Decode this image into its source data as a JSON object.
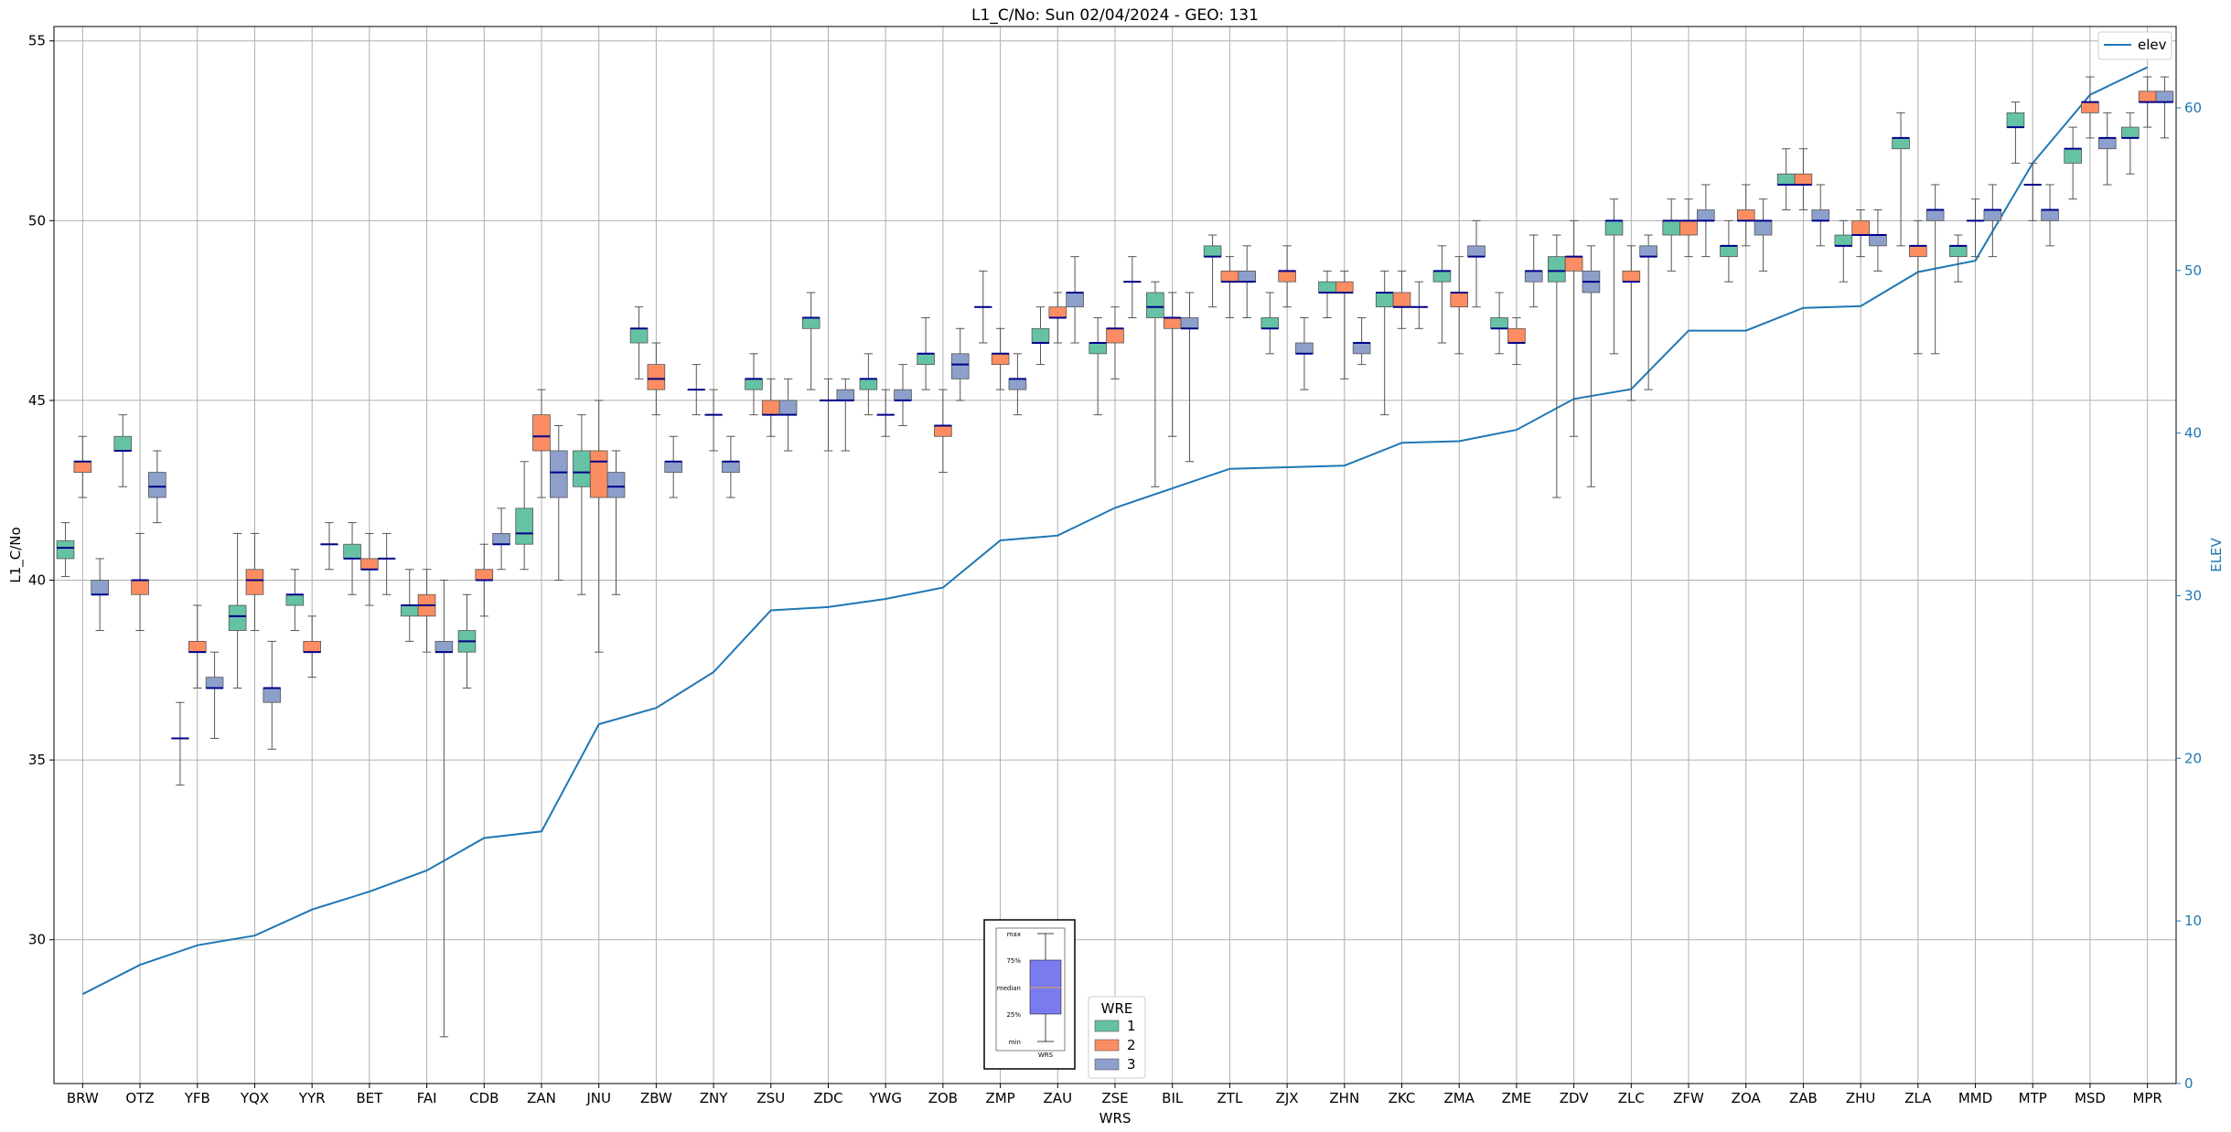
{
  "chart_data": {
    "type": "box",
    "title": "L1_C/No: Sun 02/04/2024 - GEO: 131",
    "xlabel": "WRS",
    "ylabel": "L1_C/No",
    "y2label": "ELEV",
    "ylim": [
      26,
      55.4
    ],
    "y2lim": [
      0,
      65
    ],
    "yticks": [
      30,
      35,
      40,
      45,
      50,
      55
    ],
    "y2ticks": [
      0,
      10,
      20,
      30,
      40,
      50,
      60
    ],
    "grid": true,
    "categories": [
      "BRW",
      "OTZ",
      "YFB",
      "YQX",
      "YYR",
      "BET",
      "FAI",
      "CDB",
      "ZAN",
      "JNU",
      "ZBW",
      "ZNY",
      "ZSU",
      "ZDC",
      "YWG",
      "ZOB",
      "ZMP",
      "ZAU",
      "ZSE",
      "BIL",
      "ZTL",
      "ZJX",
      "ZHN",
      "ZKC",
      "ZMA",
      "ZME",
      "ZDV",
      "ZLC",
      "ZFW",
      "ZOA",
      "ZAB",
      "ZHU",
      "ZLA",
      "MMD",
      "MTP",
      "MSD",
      "MPR"
    ],
    "series_colors": {
      "1": "#66c2a5",
      "2": "#fc8d62",
      "3": "#8da0cb"
    },
    "median_color": "#00008b",
    "elev_color": "#1f77b4",
    "elev_legend_label": "elev",
    "wre_legend": {
      "title": "WRE",
      "items": [
        "1",
        "2",
        "3"
      ]
    },
    "box_key": {
      "labels": [
        "max",
        "75%",
        "median",
        "25%",
        "min"
      ],
      "xlabel": "WRS",
      "fill": "#7b7bf0"
    },
    "elev": [
      5.5,
      7.3,
      8.5,
      9.1,
      10.7,
      11.8,
      13.1,
      15.1,
      15.5,
      22.1,
      23.1,
      25.3,
      29.1,
      29.3,
      29.8,
      30.5,
      33.4,
      33.7,
      35.4,
      36.6,
      37.8,
      37.9,
      38.0,
      39.4,
      39.5,
      40.2,
      42.1,
      42.7,
      46.3,
      46.3,
      47.7,
      47.8,
      49.9,
      50.6,
      56.6,
      60.8,
      62.5
    ],
    "boxes": [
      {
        "wrs": "BRW",
        "wre": 1,
        "min": 40.1,
        "q1": 40.6,
        "med": 40.9,
        "q3": 41.1,
        "max": 41.6
      },
      {
        "wrs": "BRW",
        "wre": 2,
        "min": 42.3,
        "q1": 43.0,
        "med": 43.3,
        "q3": 43.3,
        "max": 44.0
      },
      {
        "wrs": "BRW",
        "wre": 3,
        "min": 38.6,
        "q1": 39.6,
        "med": 39.6,
        "q3": 40.0,
        "max": 40.6
      },
      {
        "wrs": "OTZ",
        "wre": 1,
        "min": 42.6,
        "q1": 43.6,
        "med": 43.6,
        "q3": 44.0,
        "max": 44.6
      },
      {
        "wrs": "OTZ",
        "wre": 2,
        "min": 38.6,
        "q1": 39.6,
        "med": 40.0,
        "q3": 40.0,
        "max": 41.3
      },
      {
        "wrs": "OTZ",
        "wre": 3,
        "min": 41.6,
        "q1": 42.3,
        "med": 42.6,
        "q3": 43.0,
        "max": 43.6
      },
      {
        "wrs": "YFB",
        "wre": 1,
        "min": 34.3,
        "q1": 35.6,
        "med": 35.6,
        "q3": 35.6,
        "max": 36.6
      },
      {
        "wrs": "YFB",
        "wre": 2,
        "min": 37.0,
        "q1": 38.0,
        "med": 38.0,
        "q3": 38.3,
        "max": 39.3
      },
      {
        "wrs": "YFB",
        "wre": 3,
        "min": 35.6,
        "q1": 37.0,
        "med": 37.0,
        "q3": 37.3,
        "max": 38.0
      },
      {
        "wrs": "YQX",
        "wre": 1,
        "min": 37.0,
        "q1": 38.6,
        "med": 39.0,
        "q3": 39.3,
        "max": 41.3
      },
      {
        "wrs": "YQX",
        "wre": 2,
        "min": 38.6,
        "q1": 39.6,
        "med": 40.0,
        "q3": 40.3,
        "max": 41.3
      },
      {
        "wrs": "YQX",
        "wre": 3,
        "min": 35.3,
        "q1": 36.6,
        "med": 37.0,
        "q3": 37.0,
        "max": 38.3
      },
      {
        "wrs": "YYR",
        "wre": 1,
        "min": 38.6,
        "q1": 39.3,
        "med": 39.6,
        "q3": 39.6,
        "max": 40.3
      },
      {
        "wrs": "YYR",
        "wre": 2,
        "min": 37.3,
        "q1": 38.0,
        "med": 38.0,
        "q3": 38.3,
        "max": 39.0
      },
      {
        "wrs": "YYR",
        "wre": 3,
        "min": 40.3,
        "q1": 41.0,
        "med": 41.0,
        "q3": 41.0,
        "max": 41.6
      },
      {
        "wrs": "BET",
        "wre": 1,
        "min": 39.6,
        "q1": 40.6,
        "med": 40.6,
        "q3": 41.0,
        "max": 41.6
      },
      {
        "wrs": "BET",
        "wre": 2,
        "min": 39.3,
        "q1": 40.3,
        "med": 40.3,
        "q3": 40.6,
        "max": 41.3
      },
      {
        "wrs": "BET",
        "wre": 3,
        "min": 39.6,
        "q1": 40.6,
        "med": 40.6,
        "q3": 40.6,
        "max": 41.3
      },
      {
        "wrs": "FAI",
        "wre": 1,
        "min": 38.3,
        "q1": 39.0,
        "med": 39.3,
        "q3": 39.3,
        "max": 40.3
      },
      {
        "wrs": "FAI",
        "wre": 2,
        "min": 38.0,
        "q1": 39.0,
        "med": 39.3,
        "q3": 39.6,
        "max": 40.3
      },
      {
        "wrs": "FAI",
        "wre": 3,
        "min": 27.3,
        "q1": 38.0,
        "med": 38.0,
        "q3": 38.3,
        "max": 40.0
      },
      {
        "wrs": "CDB",
        "wre": 1,
        "min": 37.0,
        "q1": 38.0,
        "med": 38.3,
        "q3": 38.6,
        "max": 39.6
      },
      {
        "wrs": "CDB",
        "wre": 2,
        "min": 39.0,
        "q1": 40.0,
        "med": 40.0,
        "q3": 40.3,
        "max": 41.0
      },
      {
        "wrs": "CDB",
        "wre": 3,
        "min": 40.3,
        "q1": 41.0,
        "med": 41.0,
        "q3": 41.3,
        "max": 42.0
      },
      {
        "wrs": "ZAN",
        "wre": 1,
        "min": 40.3,
        "q1": 41.0,
        "med": 41.3,
        "q3": 42.0,
        "max": 43.3
      },
      {
        "wrs": "ZAN",
        "wre": 2,
        "min": 42.3,
        "q1": 43.6,
        "med": 44.0,
        "q3": 44.6,
        "max": 45.3
      },
      {
        "wrs": "ZAN",
        "wre": 3,
        "min": 40.0,
        "q1": 42.3,
        "med": 43.0,
        "q3": 43.6,
        "max": 44.3
      },
      {
        "wrs": "JNU",
        "wre": 1,
        "min": 39.6,
        "q1": 42.6,
        "med": 43.0,
        "q3": 43.6,
        "max": 44.6
      },
      {
        "wrs": "JNU",
        "wre": 2,
        "min": 38.0,
        "q1": 42.3,
        "med": 43.3,
        "q3": 43.6,
        "max": 45.0
      },
      {
        "wrs": "JNU",
        "wre": 3,
        "min": 39.6,
        "q1": 42.3,
        "med": 42.6,
        "q3": 43.0,
        "max": 43.6
      },
      {
        "wrs": "ZBW",
        "wre": 1,
        "min": 45.6,
        "q1": 46.6,
        "med": 47.0,
        "q3": 47.0,
        "max": 47.6
      },
      {
        "wrs": "ZBW",
        "wre": 2,
        "min": 44.6,
        "q1": 45.3,
        "med": 45.6,
        "q3": 46.0,
        "max": 46.6
      },
      {
        "wrs": "ZBW",
        "wre": 3,
        "min": 42.3,
        "q1": 43.0,
        "med": 43.3,
        "q3": 43.3,
        "max": 44.0
      },
      {
        "wrs": "ZNY",
        "wre": 1,
        "min": 44.6,
        "q1": 45.3,
        "med": 45.3,
        "q3": 45.3,
        "max": 46.0
      },
      {
        "wrs": "ZNY",
        "wre": 2,
        "min": 43.6,
        "q1": 44.6,
        "med": 44.6,
        "q3": 44.6,
        "max": 45.3
      },
      {
        "wrs": "ZNY",
        "wre": 3,
        "min": 42.3,
        "q1": 43.0,
        "med": 43.3,
        "q3": 43.3,
        "max": 44.0
      },
      {
        "wrs": "ZSU",
        "wre": 1,
        "min": 44.6,
        "q1": 45.3,
        "med": 45.6,
        "q3": 45.6,
        "max": 46.3
      },
      {
        "wrs": "ZSU",
        "wre": 2,
        "min": 44.0,
        "q1": 44.6,
        "med": 44.6,
        "q3": 45.0,
        "max": 45.6
      },
      {
        "wrs": "ZSU",
        "wre": 3,
        "min": 43.6,
        "q1": 44.6,
        "med": 44.6,
        "q3": 45.0,
        "max": 45.6
      },
      {
        "wrs": "ZDC",
        "wre": 1,
        "min": 45.3,
        "q1": 47.0,
        "med": 47.3,
        "q3": 47.3,
        "max": 48.0
      },
      {
        "wrs": "ZDC",
        "wre": 2,
        "min": 43.6,
        "q1": 45.0,
        "med": 45.0,
        "q3": 45.0,
        "max": 45.6
      },
      {
        "wrs": "ZDC",
        "wre": 3,
        "min": 43.6,
        "q1": 45.0,
        "med": 45.0,
        "q3": 45.3,
        "max": 45.6
      },
      {
        "wrs": "YWG",
        "wre": 1,
        "min": 44.6,
        "q1": 45.3,
        "med": 45.6,
        "q3": 45.6,
        "max": 46.3
      },
      {
        "wrs": "YWG",
        "wre": 2,
        "min": 44.0,
        "q1": 44.6,
        "med": 44.6,
        "q3": 44.6,
        "max": 45.3
      },
      {
        "wrs": "YWG",
        "wre": 3,
        "min": 44.3,
        "q1": 45.0,
        "med": 45.0,
        "q3": 45.3,
        "max": 46.0
      },
      {
        "wrs": "ZOB",
        "wre": 1,
        "min": 45.3,
        "q1": 46.0,
        "med": 46.3,
        "q3": 46.3,
        "max": 47.3
      },
      {
        "wrs": "ZOB",
        "wre": 2,
        "min": 43.0,
        "q1": 44.0,
        "med": 44.3,
        "q3": 44.3,
        "max": 45.3
      },
      {
        "wrs": "ZOB",
        "wre": 3,
        "min": 45.0,
        "q1": 45.6,
        "med": 46.0,
        "q3": 46.3,
        "max": 47.0
      },
      {
        "wrs": "ZMP",
        "wre": 1,
        "min": 46.6,
        "q1": 47.6,
        "med": 47.6,
        "q3": 47.6,
        "max": 48.6
      },
      {
        "wrs": "ZMP",
        "wre": 2,
        "min": 45.3,
        "q1": 46.0,
        "med": 46.3,
        "q3": 46.3,
        "max": 47.0
      },
      {
        "wrs": "ZMP",
        "wre": 3,
        "min": 44.6,
        "q1": 45.3,
        "med": 45.6,
        "q3": 45.6,
        "max": 46.3
      },
      {
        "wrs": "ZAU",
        "wre": 1,
        "min": 46.0,
        "q1": 46.6,
        "med": 46.6,
        "q3": 47.0,
        "max": 47.6
      },
      {
        "wrs": "ZAU",
        "wre": 2,
        "min": 46.6,
        "q1": 47.3,
        "med": 47.3,
        "q3": 47.6,
        "max": 48.0
      },
      {
        "wrs": "ZAU",
        "wre": 3,
        "min": 46.6,
        "q1": 47.6,
        "med": 48.0,
        "q3": 48.0,
        "max": 49.0
      },
      {
        "wrs": "ZSE",
        "wre": 1,
        "min": 44.6,
        "q1": 46.3,
        "med": 46.6,
        "q3": 46.6,
        "max": 47.3
      },
      {
        "wrs": "ZSE",
        "wre": 2,
        "min": 45.6,
        "q1": 46.6,
        "med": 47.0,
        "q3": 47.0,
        "max": 47.6
      },
      {
        "wrs": "ZSE",
        "wre": 3,
        "min": 47.3,
        "q1": 48.3,
        "med": 48.3,
        "q3": 48.3,
        "max": 49.0
      },
      {
        "wrs": "BIL",
        "wre": 1,
        "min": 42.6,
        "q1": 47.3,
        "med": 47.6,
        "q3": 48.0,
        "max": 48.3
      },
      {
        "wrs": "BIL",
        "wre": 2,
        "min": 44.0,
        "q1": 47.0,
        "med": 47.3,
        "q3": 47.3,
        "max": 48.0
      },
      {
        "wrs": "BIL",
        "wre": 3,
        "min": 43.3,
        "q1": 47.0,
        "med": 47.0,
        "q3": 47.3,
        "max": 48.0
      },
      {
        "wrs": "ZTL",
        "wre": 1,
        "min": 47.6,
        "q1": 49.0,
        "med": 49.0,
        "q3": 49.3,
        "max": 49.6
      },
      {
        "wrs": "ZTL",
        "wre": 2,
        "min": 47.3,
        "q1": 48.3,
        "med": 48.3,
        "q3": 48.6,
        "max": 49.0
      },
      {
        "wrs": "ZTL",
        "wre": 3,
        "min": 47.3,
        "q1": 48.3,
        "med": 48.3,
        "q3": 48.6,
        "max": 49.3
      },
      {
        "wrs": "ZJX",
        "wre": 1,
        "min": 46.3,
        "q1": 47.0,
        "med": 47.0,
        "q3": 47.3,
        "max": 48.0
      },
      {
        "wrs": "ZJX",
        "wre": 2,
        "min": 47.6,
        "q1": 48.3,
        "med": 48.6,
        "q3": 48.6,
        "max": 49.3
      },
      {
        "wrs": "ZJX",
        "wre": 3,
        "min": 45.3,
        "q1": 46.3,
        "med": 46.3,
        "q3": 46.6,
        "max": 47.3
      },
      {
        "wrs": "ZHN",
        "wre": 1,
        "min": 47.3,
        "q1": 48.0,
        "med": 48.0,
        "q3": 48.3,
        "max": 48.6
      },
      {
        "wrs": "ZHN",
        "wre": 2,
        "min": 45.6,
        "q1": 48.0,
        "med": 48.0,
        "q3": 48.3,
        "max": 48.6
      },
      {
        "wrs": "ZHN",
        "wre": 3,
        "min": 46.0,
        "q1": 46.3,
        "med": 46.6,
        "q3": 46.6,
        "max": 47.3
      },
      {
        "wrs": "ZKC",
        "wre": 1,
        "min": 44.6,
        "q1": 47.6,
        "med": 48.0,
        "q3": 48.0,
        "max": 48.6
      },
      {
        "wrs": "ZKC",
        "wre": 2,
        "min": 47.0,
        "q1": 47.6,
        "med": 47.6,
        "q3": 48.0,
        "max": 48.6
      },
      {
        "wrs": "ZKC",
        "wre": 3,
        "min": 47.0,
        "q1": 47.6,
        "med": 47.6,
        "q3": 47.6,
        "max": 48.3
      },
      {
        "wrs": "ZMA",
        "wre": 1,
        "min": 46.6,
        "q1": 48.3,
        "med": 48.6,
        "q3": 48.6,
        "max": 49.3
      },
      {
        "wrs": "ZMA",
        "wre": 2,
        "min": 46.3,
        "q1": 47.6,
        "med": 48.0,
        "q3": 48.0,
        "max": 49.0
      },
      {
        "wrs": "ZMA",
        "wre": 3,
        "min": 47.6,
        "q1": 49.0,
        "med": 49.0,
        "q3": 49.3,
        "max": 50.0
      },
      {
        "wrs": "ZME",
        "wre": 1,
        "min": 46.3,
        "q1": 47.0,
        "med": 47.0,
        "q3": 47.3,
        "max": 48.0
      },
      {
        "wrs": "ZME",
        "wre": 2,
        "min": 46.0,
        "q1": 46.6,
        "med": 46.6,
        "q3": 47.0,
        "max": 47.3
      },
      {
        "wrs": "ZME",
        "wre": 3,
        "min": 47.6,
        "q1": 48.3,
        "med": 48.6,
        "q3": 48.6,
        "max": 49.6
      },
      {
        "wrs": "ZDV",
        "wre": 1,
        "min": 42.3,
        "q1": 48.3,
        "med": 48.6,
        "q3": 49.0,
        "max": 49.6
      },
      {
        "wrs": "ZDV",
        "wre": 2,
        "min": 44.0,
        "q1": 48.6,
        "med": 49.0,
        "q3": 49.0,
        "max": 50.0
      },
      {
        "wrs": "ZDV",
        "wre": 3,
        "min": 42.6,
        "q1": 48.0,
        "med": 48.3,
        "q3": 48.6,
        "max": 49.3
      },
      {
        "wrs": "ZLC",
        "wre": 1,
        "min": 46.3,
        "q1": 49.6,
        "med": 50.0,
        "q3": 50.0,
        "max": 50.6
      },
      {
        "wrs": "ZLC",
        "wre": 2,
        "min": 45.0,
        "q1": 48.3,
        "med": 48.3,
        "q3": 48.6,
        "max": 49.3
      },
      {
        "wrs": "ZLC",
        "wre": 3,
        "min": 45.3,
        "q1": 49.0,
        "med": 49.0,
        "q3": 49.3,
        "max": 49.6
      },
      {
        "wrs": "ZFW",
        "wre": 1,
        "min": 48.6,
        "q1": 49.6,
        "med": 50.0,
        "q3": 50.0,
        "max": 50.6
      },
      {
        "wrs": "ZFW",
        "wre": 2,
        "min": 49.0,
        "q1": 49.6,
        "med": 50.0,
        "q3": 50.0,
        "max": 50.6
      },
      {
        "wrs": "ZFW",
        "wre": 3,
        "min": 49.0,
        "q1": 50.0,
        "med": 50.0,
        "q3": 50.3,
        "max": 51.0
      },
      {
        "wrs": "ZOA",
        "wre": 1,
        "min": 48.3,
        "q1": 49.0,
        "med": 49.3,
        "q3": 49.3,
        "max": 50.0
      },
      {
        "wrs": "ZOA",
        "wre": 2,
        "min": 49.3,
        "q1": 50.0,
        "med": 50.0,
        "q3": 50.3,
        "max": 51.0
      },
      {
        "wrs": "ZOA",
        "wre": 3,
        "min": 48.6,
        "q1": 49.6,
        "med": 50.0,
        "q3": 50.0,
        "max": 50.6
      },
      {
        "wrs": "ZAB",
        "wre": 1,
        "min": 50.3,
        "q1": 51.0,
        "med": 51.0,
        "q3": 51.3,
        "max": 52.0
      },
      {
        "wrs": "ZAB",
        "wre": 2,
        "min": 50.3,
        "q1": 51.0,
        "med": 51.0,
        "q3": 51.3,
        "max": 52.0
      },
      {
        "wrs": "ZAB",
        "wre": 3,
        "min": 49.3,
        "q1": 50.0,
        "med": 50.0,
        "q3": 50.3,
        "max": 51.0
      },
      {
        "wrs": "ZHU",
        "wre": 1,
        "min": 48.3,
        "q1": 49.3,
        "med": 49.3,
        "q3": 49.6,
        "max": 50.0
      },
      {
        "wrs": "ZHU",
        "wre": 2,
        "min": 49.0,
        "q1": 49.6,
        "med": 49.6,
        "q3": 50.0,
        "max": 50.3
      },
      {
        "wrs": "ZHU",
        "wre": 3,
        "min": 48.6,
        "q1": 49.3,
        "med": 49.6,
        "q3": 49.6,
        "max": 50.3
      },
      {
        "wrs": "ZLA",
        "wre": 1,
        "min": 49.3,
        "q1": 52.0,
        "med": 52.3,
        "q3": 52.3,
        "max": 53.0
      },
      {
        "wrs": "ZLA",
        "wre": 2,
        "min": 46.3,
        "q1": 49.0,
        "med": 49.3,
        "q3": 49.3,
        "max": 50.0
      },
      {
        "wrs": "ZLA",
        "wre": 3,
        "min": 46.3,
        "q1": 50.0,
        "med": 50.3,
        "q3": 50.3,
        "max": 51.0
      },
      {
        "wrs": "MMD",
        "wre": 1,
        "min": 48.3,
        "q1": 49.0,
        "med": 49.3,
        "q3": 49.3,
        "max": 49.6
      },
      {
        "wrs": "MMD",
        "wre": 2,
        "min": 49.0,
        "q1": 50.0,
        "med": 50.0,
        "q3": 50.0,
        "max": 50.6
      },
      {
        "wrs": "MMD",
        "wre": 3,
        "min": 49.0,
        "q1": 50.0,
        "med": 50.3,
        "q3": 50.3,
        "max": 51.0
      },
      {
        "wrs": "MTP",
        "wre": 1,
        "min": 51.6,
        "q1": 52.6,
        "med": 52.6,
        "q3": 53.0,
        "max": 53.3
      },
      {
        "wrs": "MTP",
        "wre": 2,
        "min": 50.0,
        "q1": 51.0,
        "med": 51.0,
        "q3": 51.0,
        "max": 51.6
      },
      {
        "wrs": "MTP",
        "wre": 3,
        "min": 49.3,
        "q1": 50.0,
        "med": 50.3,
        "q3": 50.3,
        "max": 51.0
      },
      {
        "wrs": "MSD",
        "wre": 1,
        "min": 50.6,
        "q1": 51.6,
        "med": 52.0,
        "q3": 52.0,
        "max": 52.6
      },
      {
        "wrs": "MSD",
        "wre": 2,
        "min": 52.3,
        "q1": 53.0,
        "med": 53.3,
        "q3": 53.3,
        "max": 54.0
      },
      {
        "wrs": "MSD",
        "wre": 3,
        "min": 51.0,
        "q1": 52.0,
        "med": 52.3,
        "q3": 52.3,
        "max": 53.0
      },
      {
        "wrs": "MPR",
        "wre": 1,
        "min": 51.3,
        "q1": 52.3,
        "med": 52.3,
        "q3": 52.6,
        "max": 53.0
      },
      {
        "wrs": "MPR",
        "wre": 2,
        "min": 52.6,
        "q1": 53.3,
        "med": 53.3,
        "q3": 53.6,
        "max": 54.0
      },
      {
        "wrs": "MPR",
        "wre": 3,
        "min": 52.3,
        "q1": 53.3,
        "med": 53.3,
        "q3": 53.6,
        "max": 54.0
      }
    ]
  }
}
